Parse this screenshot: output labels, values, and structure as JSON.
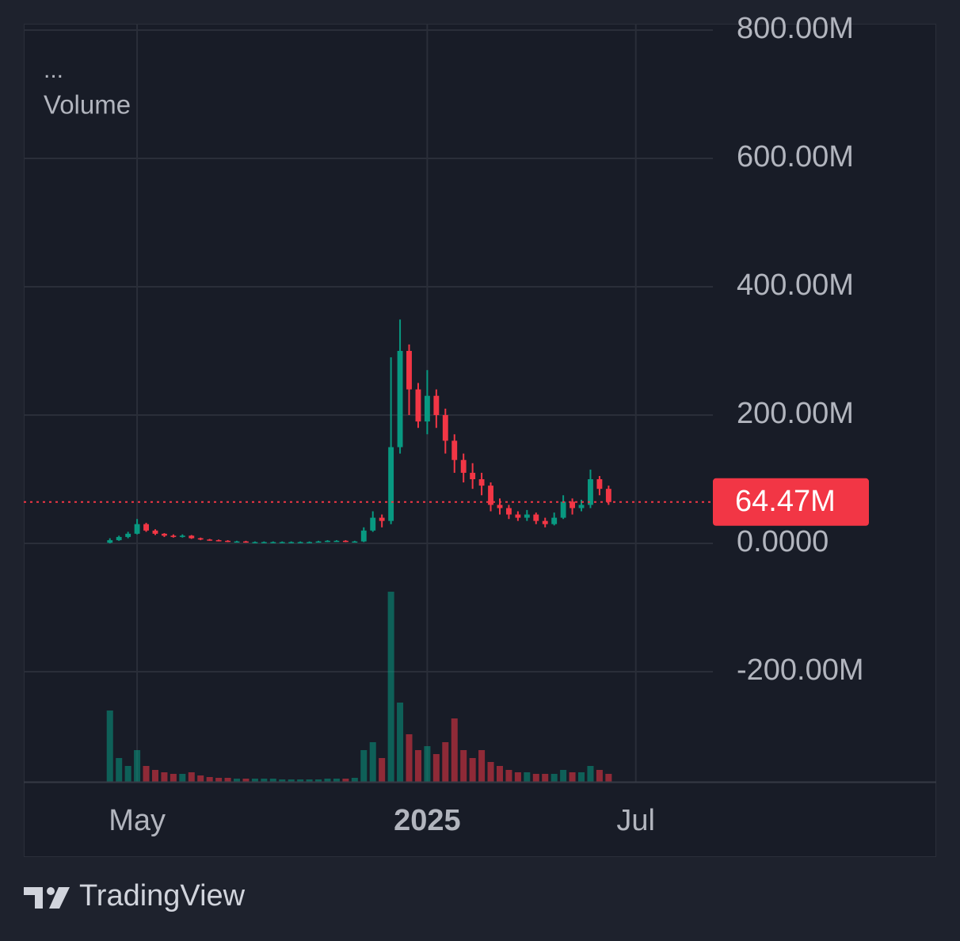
{
  "chart_data": {
    "type": "candlestick",
    "legend": {
      "title": "...",
      "volume_label": "Volume"
    },
    "categories": [
      null,
      null,
      null,
      null,
      null,
      null,
      null,
      null,
      null,
      null,
      null,
      null,
      "May",
      null,
      null,
      null,
      null,
      null,
      null,
      null,
      null,
      null,
      null,
      null,
      null,
      null,
      null,
      null,
      null,
      null,
      null,
      null,
      null,
      null,
      null,
      null,
      null,
      null,
      null,
      null,
      null,
      null,
      null,
      null,
      "2025",
      null,
      null,
      null,
      null,
      null,
      null,
      null,
      null,
      null,
      null,
      null,
      null,
      null,
      null,
      null,
      null,
      null,
      null,
      null,
      null,
      null,
      null,
      "Jul",
      null,
      null,
      null,
      null,
      null,
      null,
      null,
      null
    ],
    "open": [
      null,
      null,
      null,
      null,
      null,
      null,
      null,
      null,
      null,
      1,
      5,
      10,
      15,
      30,
      20,
      15,
      12,
      10,
      12,
      8,
      6,
      5,
      4,
      3,
      3,
      2,
      2,
      2,
      2,
      2,
      2,
      2,
      2,
      3,
      4,
      4,
      3,
      3,
      20,
      40,
      35,
      150,
      300,
      240,
      190,
      230,
      200,
      160,
      130,
      110,
      100,
      90,
      60,
      55,
      45,
      40,
      45,
      35,
      30,
      40,
      65,
      55,
      60,
      100,
      85,
      null,
      null,
      null,
      null,
      null,
      null,
      null,
      null,
      null,
      null,
      null
    ],
    "high": [
      null,
      null,
      null,
      null,
      null,
      null,
      null,
      null,
      null,
      8,
      12,
      18,
      38,
      32,
      22,
      16,
      14,
      14,
      13,
      9,
      7,
      6,
      5,
      4,
      4,
      3,
      3,
      3,
      3,
      3,
      3,
      3,
      4,
      5,
      5,
      5,
      4,
      25,
      50,
      45,
      290,
      349,
      310,
      250,
      270,
      240,
      210,
      170,
      140,
      125,
      110,
      95,
      70,
      60,
      50,
      52,
      48,
      40,
      48,
      75,
      70,
      68,
      115,
      105,
      90,
      null,
      null,
      null,
      null,
      null,
      null,
      null,
      null,
      null,
      null,
      null
    ],
    "low": [
      null,
      null,
      null,
      null,
      null,
      null,
      null,
      null,
      null,
      0,
      4,
      8,
      14,
      18,
      13,
      10,
      9,
      9,
      7,
      5,
      4,
      3,
      2,
      2,
      1,
      1,
      1,
      1,
      1,
      1,
      1,
      1,
      2,
      2,
      3,
      2,
      2,
      2,
      18,
      25,
      30,
      140,
      200,
      180,
      170,
      180,
      140,
      110,
      95,
      85,
      75,
      50,
      45,
      38,
      35,
      35,
      30,
      25,
      28,
      38,
      45,
      50,
      55,
      75,
      60,
      null,
      null,
      null,
      null,
      null,
      null,
      null,
      null,
      null,
      null,
      null
    ],
    "close": [
      null,
      null,
      null,
      null,
      null,
      null,
      null,
      null,
      null,
      5,
      10,
      15,
      30,
      20,
      15,
      12,
      10,
      12,
      8,
      6,
      5,
      4,
      3,
      3,
      2,
      2,
      2,
      2,
      2,
      2,
      2,
      2,
      3,
      4,
      4,
      3,
      3,
      20,
      40,
      35,
      150,
      300,
      240,
      190,
      230,
      200,
      160,
      130,
      110,
      100,
      90,
      60,
      55,
      45,
      40,
      45,
      35,
      30,
      40,
      65,
      55,
      60,
      100,
      85,
      64.47,
      null,
      null,
      null,
      null,
      null,
      null,
      null,
      null,
      null,
      null,
      null
    ],
    "volume": [
      null,
      null,
      null,
      null,
      null,
      null,
      null,
      null,
      null,
      90,
      30,
      20,
      40,
      20,
      15,
      12,
      10,
      10,
      12,
      8,
      6,
      5,
      5,
      4,
      4,
      4,
      4,
      4,
      3,
      3,
      3,
      3,
      3,
      4,
      4,
      4,
      5,
      40,
      50,
      30,
      240,
      100,
      60,
      40,
      45,
      35,
      50,
      80,
      40,
      30,
      40,
      25,
      20,
      15,
      12,
      12,
      10,
      10,
      10,
      15,
      12,
      12,
      20,
      15,
      10,
      null,
      null,
      null,
      null,
      null,
      null,
      null,
      null,
      null,
      null,
      null
    ],
    "up_color": "#089981",
    "down_color": "#f23645",
    "ylim": [
      -371.6,
      809.9
    ],
    "yticks": [
      {
        "value": 800,
        "label": "800.00M"
      },
      {
        "value": 600,
        "label": "600.00M"
      },
      {
        "value": 400,
        "label": "400.00M"
      },
      {
        "value": 200,
        "label": "200.00M"
      },
      {
        "value": 0,
        "label": "0.0000"
      },
      {
        "value": -200,
        "label": "-200.00M"
      }
    ],
    "grid": true,
    "last_price": {
      "value": 64.47,
      "label": "64.47M"
    }
  },
  "brand": "TradingView"
}
